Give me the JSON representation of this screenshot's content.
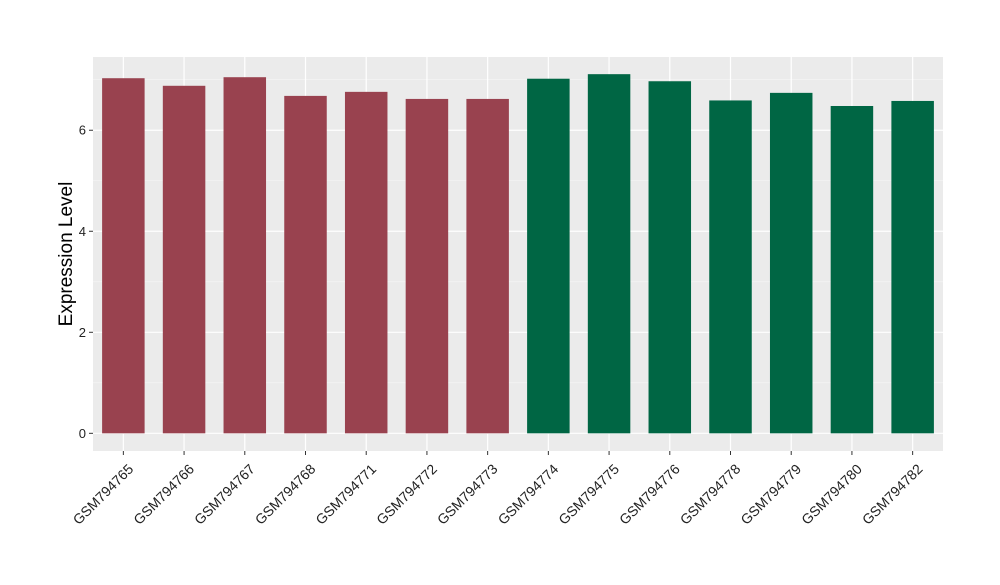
{
  "chart_data": {
    "type": "bar",
    "title": "",
    "xlabel": "",
    "ylabel": "Expression Level",
    "ylim": [
      -0.35,
      7.45
    ],
    "yticks": [
      0,
      2,
      4,
      6
    ],
    "grid": true,
    "legend": "none",
    "categories": [
      "GSM794765",
      "GSM794766",
      "GSM794767",
      "GSM794768",
      "GSM794771",
      "GSM794772",
      "GSM794773",
      "GSM794774",
      "GSM794775",
      "GSM794776",
      "GSM794778",
      "GSM794779",
      "GSM794780",
      "GSM794782"
    ],
    "values": [
      7.03,
      6.88,
      7.05,
      6.68,
      6.76,
      6.62,
      6.62,
      7.02,
      7.11,
      6.97,
      6.59,
      6.74,
      6.48,
      6.58
    ],
    "bar_colors": [
      "#99424f",
      "#99424f",
      "#99424f",
      "#99424f",
      "#99424f",
      "#99424f",
      "#99424f",
      "#006644",
      "#006644",
      "#006644",
      "#006644",
      "#006644",
      "#006644",
      "#006644"
    ]
  }
}
